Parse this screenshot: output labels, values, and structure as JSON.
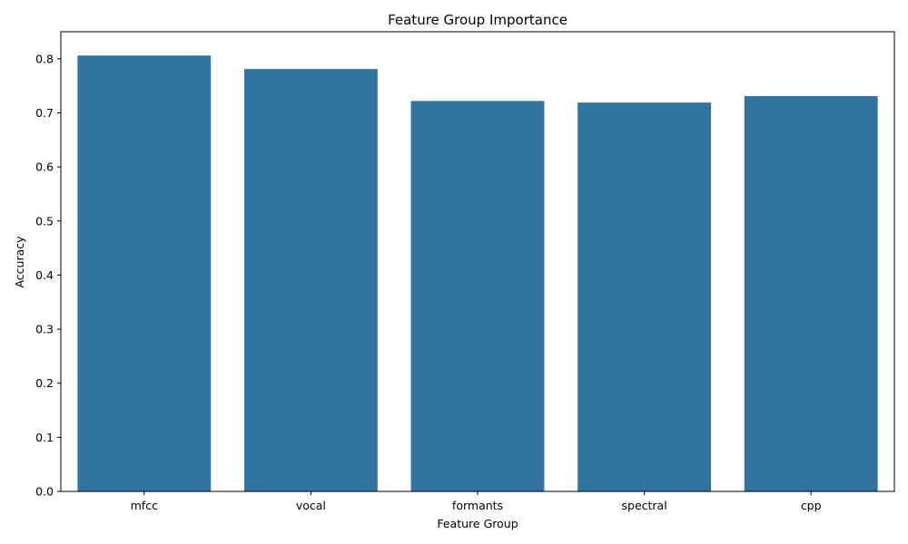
{
  "chart_data": {
    "type": "bar",
    "title": "Feature Group Importance",
    "xlabel": "Feature Group",
    "ylabel": "Accuracy",
    "categories": [
      "mfcc",
      "vocal",
      "formants",
      "spectral",
      "cpp"
    ],
    "values": [
      0.806,
      0.781,
      0.722,
      0.719,
      0.731
    ],
    "ylim": [
      0,
      0.85
    ],
    "yticks": [
      "0.0",
      "0.1",
      "0.2",
      "0.3",
      "0.4",
      "0.5",
      "0.6",
      "0.7",
      "0.8"
    ],
    "grid": false,
    "bar_color": "#3274a1"
  }
}
